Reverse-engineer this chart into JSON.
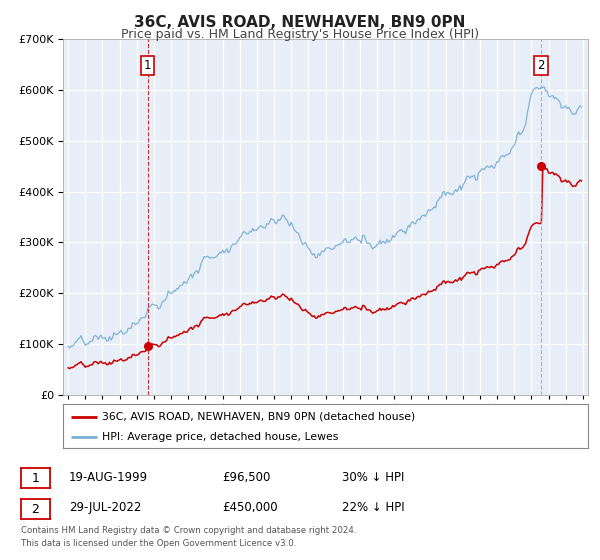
{
  "title": "36C, AVIS ROAD, NEWHAVEN, BN9 0PN",
  "subtitle": "Price paid vs. HM Land Registry's House Price Index (HPI)",
  "title_fontsize": 11,
  "subtitle_fontsize": 9,
  "background_color": "#ffffff",
  "plot_bg_color": "#e8eef8",
  "grid_color": "#ffffff",
  "red_color": "#cc0000",
  "blue_color": "#7ab0d4",
  "sale1_date": 1999.63,
  "sale1_price": 96500,
  "sale1_label": "1",
  "sale2_date": 2022.57,
  "sale2_price": 450000,
  "sale2_label": "2",
  "ylim_max": 700000,
  "xlim_min": 1994.7,
  "xlim_max": 2025.3,
  "legend_line1": "36C, AVIS ROAD, NEWHAVEN, BN9 0PN (detached house)",
  "legend_line2": "HPI: Average price, detached house, Lewes",
  "table_row1": [
    "1",
    "19-AUG-1999",
    "£96,500",
    "30% ↓ HPI"
  ],
  "table_row2": [
    "2",
    "29-JUL-2022",
    "£450,000",
    "22% ↓ HPI"
  ],
  "footer1": "Contains HM Land Registry data © Crown copyright and database right 2024.",
  "footer2": "This data is licensed under the Open Government Licence v3.0."
}
